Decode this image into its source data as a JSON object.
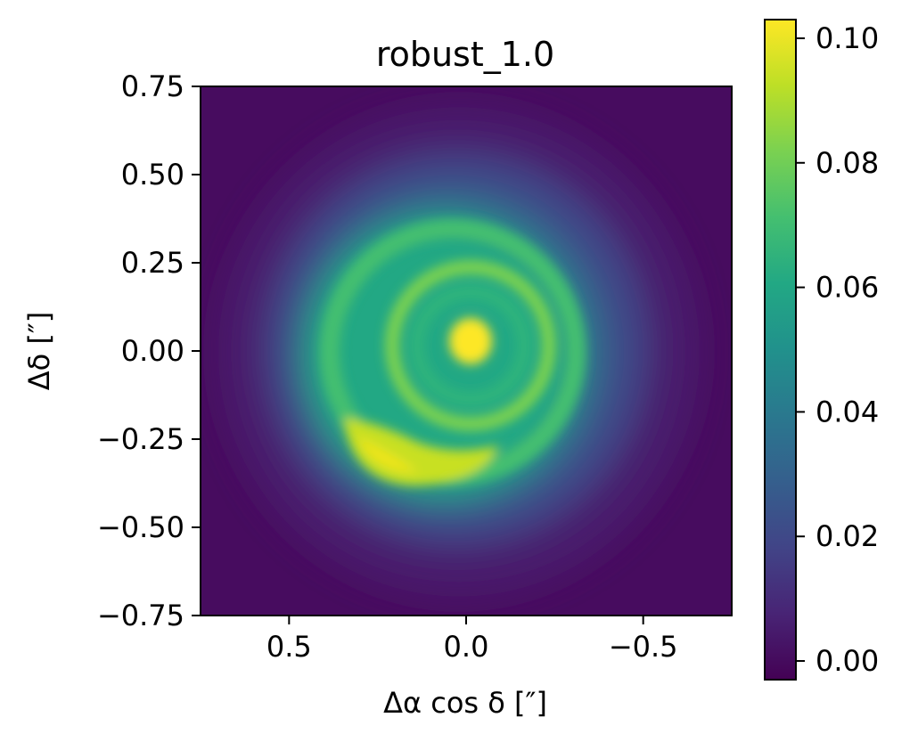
{
  "chart_data": {
    "type": "heatmap",
    "title": "robust_1.0",
    "xlabel": "Δα cos δ [″]",
    "ylabel": "Δδ [″]",
    "xlim": [
      0.75,
      -0.75
    ],
    "ylim": [
      -0.75,
      0.75
    ],
    "x_ticks": [
      {
        "value": 0.5,
        "label": "0.5"
      },
      {
        "value": 0.0,
        "label": "0.0"
      },
      {
        "value": -0.5,
        "label": "−0.5"
      }
    ],
    "y_ticks": [
      {
        "value": 0.75,
        "label": "0.75"
      },
      {
        "value": 0.5,
        "label": "0.50"
      },
      {
        "value": 0.25,
        "label": "0.25"
      },
      {
        "value": 0.0,
        "label": "0.00"
      },
      {
        "value": -0.25,
        "label": "−0.25"
      },
      {
        "value": -0.5,
        "label": "−0.50"
      },
      {
        "value": -0.75,
        "label": "−0.75"
      }
    ],
    "colorbar": {
      "colormap": "viridis",
      "range": [
        -0.003,
        0.103
      ],
      "ticks": [
        {
          "value": 0.0,
          "label": "0.00"
        },
        {
          "value": 0.02,
          "label": "0.02"
        },
        {
          "value": 0.04,
          "label": "0.04"
        },
        {
          "value": 0.06,
          "label": "0.06"
        },
        {
          "value": 0.08,
          "label": "0.08"
        },
        {
          "value": 0.1,
          "label": "0.10"
        }
      ]
    },
    "image_features": {
      "peak_center": {
        "x": 0.0,
        "y": 0.03,
        "value": 0.1
      },
      "inner_ring_radius": 0.23,
      "bright_arc_southeast": {
        "x": 0.28,
        "y": -0.3,
        "value": 0.1
      },
      "background_value": 0.0
    }
  }
}
